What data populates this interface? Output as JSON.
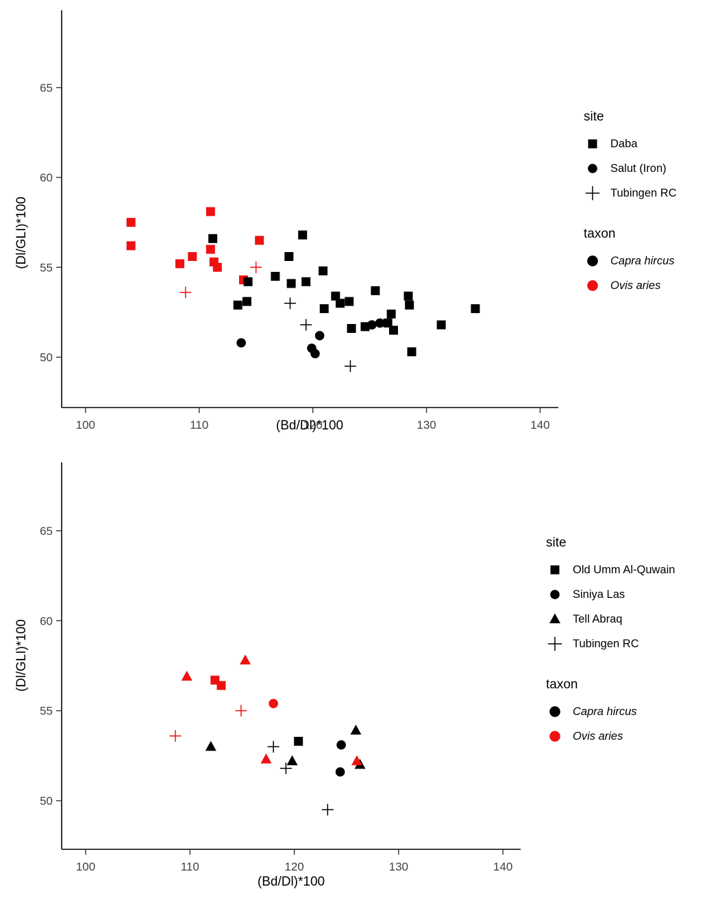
{
  "colors": {
    "capra": "#000000",
    "ovis": "#ee1111",
    "tick_label": "#404040",
    "axis_line": "#000000"
  },
  "chart_data": [
    {
      "type": "scatter",
      "title": "",
      "xlabel": "(Bd/Dl)*100",
      "ylabel": "(Dl/GLI)*100",
      "xlim": [
        97.9,
        141.6
      ],
      "ylim": [
        47.2,
        69.3
      ],
      "xticks": [
        100,
        110,
        120,
        130,
        140
      ],
      "yticks": [
        50,
        55,
        60,
        65
      ],
      "grid": false,
      "legend_position": "right",
      "legend": {
        "site_title": "site",
        "sites": [
          {
            "label": "Daba",
            "shape": "square"
          },
          {
            "label": "Salut (Iron)",
            "shape": "circle"
          },
          {
            "label": "Tubingen RC",
            "shape": "plus"
          }
        ],
        "taxon_title": "taxon",
        "taxa": [
          {
            "key": "capra",
            "label": "Capra hircus"
          },
          {
            "key": "ovis",
            "label": "Ovis aries"
          }
        ]
      },
      "points": [
        [
          104.0,
          57.5,
          "square",
          "ovis"
        ],
        [
          104.0,
          56.2,
          "square",
          "ovis"
        ],
        [
          108.3,
          55.2,
          "square",
          "ovis"
        ],
        [
          109.4,
          55.6,
          "square",
          "ovis"
        ],
        [
          111.0,
          58.1,
          "square",
          "ovis"
        ],
        [
          111.0,
          56.0,
          "square",
          "ovis"
        ],
        [
          111.3,
          55.3,
          "square",
          "ovis"
        ],
        [
          111.6,
          55.0,
          "square",
          "ovis"
        ],
        [
          113.9,
          54.3,
          "square",
          "ovis"
        ],
        [
          115.3,
          56.5,
          "square",
          "ovis"
        ],
        [
          108.8,
          53.6,
          "plus",
          "ovis"
        ],
        [
          115.0,
          55.0,
          "plus",
          "ovis"
        ],
        [
          111.2,
          56.6,
          "square",
          "capra"
        ],
        [
          113.4,
          52.9,
          "square",
          "capra"
        ],
        [
          114.2,
          53.1,
          "square",
          "capra"
        ],
        [
          114.3,
          54.2,
          "square",
          "capra"
        ],
        [
          116.7,
          54.5,
          "square",
          "capra"
        ],
        [
          117.9,
          55.6,
          "square",
          "capra"
        ],
        [
          118.1,
          54.1,
          "square",
          "capra"
        ],
        [
          119.1,
          56.8,
          "square",
          "capra"
        ],
        [
          119.4,
          54.2,
          "square",
          "capra"
        ],
        [
          120.9,
          54.8,
          "square",
          "capra"
        ],
        [
          121.0,
          52.7,
          "square",
          "capra"
        ],
        [
          122.0,
          53.4,
          "square",
          "capra"
        ],
        [
          122.4,
          53.0,
          "square",
          "capra"
        ],
        [
          123.2,
          53.1,
          "square",
          "capra"
        ],
        [
          123.4,
          51.6,
          "square",
          "capra"
        ],
        [
          124.6,
          51.7,
          "square",
          "capra"
        ],
        [
          125.5,
          53.7,
          "square",
          "capra"
        ],
        [
          126.6,
          51.9,
          "square",
          "capra"
        ],
        [
          126.9,
          52.4,
          "square",
          "capra"
        ],
        [
          127.1,
          51.5,
          "square",
          "capra"
        ],
        [
          128.4,
          53.4,
          "square",
          "capra"
        ],
        [
          128.5,
          52.9,
          "square",
          "capra"
        ],
        [
          128.7,
          50.3,
          "square",
          "capra"
        ],
        [
          131.3,
          51.8,
          "square",
          "capra"
        ],
        [
          134.3,
          52.7,
          "square",
          "capra"
        ],
        [
          113.7,
          50.8,
          "circle",
          "capra"
        ],
        [
          119.9,
          50.5,
          "circle",
          "capra"
        ],
        [
          120.2,
          50.2,
          "circle",
          "capra"
        ],
        [
          120.6,
          51.2,
          "circle",
          "capra"
        ],
        [
          125.2,
          51.8,
          "circle",
          "capra"
        ],
        [
          125.9,
          51.9,
          "circle",
          "capra"
        ],
        [
          118.0,
          53.0,
          "plus",
          "capra"
        ],
        [
          119.4,
          51.8,
          "plus",
          "capra"
        ],
        [
          123.3,
          49.5,
          "plus",
          "capra"
        ]
      ]
    },
    {
      "type": "scatter",
      "title": "",
      "xlabel": "(Bd/Dl)*100",
      "ylabel": "(Dl/GLI)*100",
      "xlim": [
        97.7,
        141.7
      ],
      "ylim": [
        47.3,
        68.8
      ],
      "xticks": [
        100,
        110,
        120,
        130,
        140
      ],
      "yticks": [
        50,
        55,
        60,
        65
      ],
      "grid": false,
      "legend_position": "right",
      "legend": {
        "site_title": "site",
        "sites": [
          {
            "label": "Old Umm Al-Quwain",
            "shape": "square"
          },
          {
            "label": "Siniya Las",
            "shape": "circle"
          },
          {
            "label": "Tell Abraq",
            "shape": "triangle"
          },
          {
            "label": "Tubingen RC",
            "shape": "plus"
          }
        ],
        "taxon_title": "taxon",
        "taxa": [
          {
            "key": "capra",
            "label": "Capra hircus"
          },
          {
            "key": "ovis",
            "label": "Ovis aries"
          }
        ]
      },
      "points": [
        [
          112.0,
          53.0,
          "triangle",
          "capra"
        ],
        [
          119.8,
          52.2,
          "triangle",
          "capra"
        ],
        [
          125.9,
          53.9,
          "triangle",
          "capra"
        ],
        [
          126.3,
          52.0,
          "triangle",
          "capra"
        ],
        [
          109.7,
          56.9,
          "triangle",
          "ovis"
        ],
        [
          115.3,
          57.8,
          "triangle",
          "ovis"
        ],
        [
          117.3,
          52.3,
          "triangle",
          "ovis"
        ],
        [
          126.0,
          52.2,
          "triangle",
          "ovis"
        ],
        [
          112.4,
          56.7,
          "square",
          "ovis"
        ],
        [
          113.0,
          56.4,
          "square",
          "ovis"
        ],
        [
          120.4,
          53.3,
          "square",
          "capra"
        ],
        [
          118.0,
          55.4,
          "circle",
          "ovis"
        ],
        [
          124.5,
          53.1,
          "circle",
          "capra"
        ],
        [
          124.4,
          51.6,
          "circle",
          "capra"
        ],
        [
          108.6,
          53.6,
          "plus",
          "ovis"
        ],
        [
          114.9,
          55.0,
          "plus",
          "ovis"
        ],
        [
          118.0,
          53.0,
          "plus",
          "capra"
        ],
        [
          119.2,
          51.8,
          "plus",
          "capra"
        ],
        [
          123.2,
          49.5,
          "plus",
          "capra"
        ]
      ]
    }
  ]
}
